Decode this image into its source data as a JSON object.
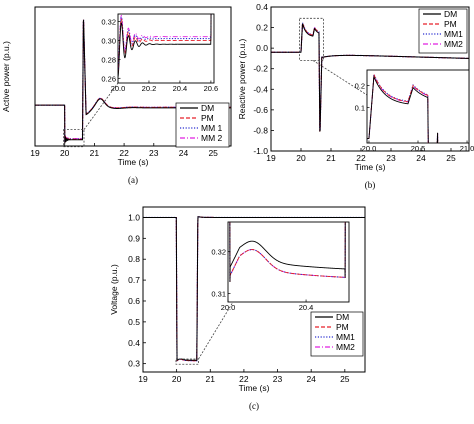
{
  "colors": {
    "DM": "#000000",
    "PM": "#e8202a",
    "MM1": "#2a2fd0",
    "MM2": "#e020e0"
  },
  "chart_data": [
    {
      "id": "a",
      "type": "line",
      "caption": "(a)",
      "xlabel": "Time (s)",
      "ylabel": "Active power (p.u.)",
      "xlim": [
        19,
        25.6
      ],
      "ylim": [
        0.25,
        1.27
      ],
      "xticks": [
        "19",
        "20",
        "21",
        "22",
        "23",
        "24",
        "25"
      ],
      "yticks": [],
      "legend": [
        "DM",
        "PM",
        "MM 1",
        "MM 2"
      ],
      "legend_position": "bottom-right",
      "series_description": "Pre-fault ~0.55 p.u.; fault 20.0-20.6 s drops to ~0.30; spike to ~1.2 at 20.6 s; dip ~0.48 then oscillation peak ~0.65 at 21.2 s, settling ~0.53",
      "inset": {
        "xlim": [
          20.0,
          20.62
        ],
        "ylim": [
          0.255,
          0.328
        ],
        "xticks": [
          "20.0",
          "20.2",
          "20.4",
          "20.6"
        ],
        "yticks": [
          "0.32",
          "0.30",
          "0.28",
          "0.26"
        ],
        "description": "Zoom of fault period: damped oscillation from ~0.26 rising to ~0.30, DM settles ~0.296, models ~0.300"
      }
    },
    {
      "id": "b",
      "type": "line",
      "caption": "(b)",
      "xlabel": "Time (s)",
      "ylabel": "Reactive power (p.u.)",
      "xlim": [
        19,
        25.6
      ],
      "ylim": [
        -1.0,
        0.4
      ],
      "xticks": [
        "19",
        "20",
        "21",
        "22",
        "23",
        "24",
        "25"
      ],
      "yticks": [
        "0.4",
        "0.2",
        "0.0",
        "-0.2",
        "-0.4",
        "-0.6",
        "-0.8",
        "-1.0"
      ],
      "legend": [
        "DM",
        "PM",
        "MM1",
        "MM2"
      ],
      "legend_position": "top-right",
      "series_description": "Pre-fault ~-0.04; jumps to ~0.24 at 20.0 s decaying to ~0.12; ~0.19 then -0.87 spike at 20.6 s; recovers to ~-0.08 trending -0.1",
      "inset": {
        "xlim": [
          19.98,
          21.02
        ],
        "xticks": [
          "20.0",
          "20.5",
          "21.0"
        ],
        "yticks": [
          "0.2",
          "0.1"
        ],
        "description": "Zoom: step up at 20.0, decay to ~0.1, spike at 20.6 s, second step then decay"
      }
    },
    {
      "id": "c",
      "type": "line",
      "caption": "(c)",
      "xlabel": "Time (s)",
      "ylabel": "Voltage (p.u.)",
      "xlim": [
        19,
        25.6
      ],
      "ylim": [
        0.26,
        1.05
      ],
      "xticks": [
        "19",
        "20",
        "21",
        "22",
        "23",
        "24",
        "25"
      ],
      "yticks": [
        "1.0",
        "0.9",
        "0.8",
        "0.7",
        "0.6",
        "0.5",
        "0.4",
        "0.3"
      ],
      "legend": [
        "DM",
        "PM",
        "MM1",
        "MM2"
      ],
      "legend_position": "bottom-right",
      "series_description": "1.0 p.u. before 20.0 s; sag to ~0.31 during 20.0-20.6 s; recovers to ~1.0",
      "inset": {
        "xlim": [
          20.0,
          20.62
        ],
        "ylim": [
          0.308,
          0.327
        ],
        "xticks": [
          "20.0",
          "20.4"
        ],
        "yticks": [
          "0.32",
          "0.31"
        ],
        "description": "Zoom of sag: dip to ~0.313 then rises to ~0.317, slowly decays; DM ~0.315, models ~0.313"
      }
    }
  ]
}
